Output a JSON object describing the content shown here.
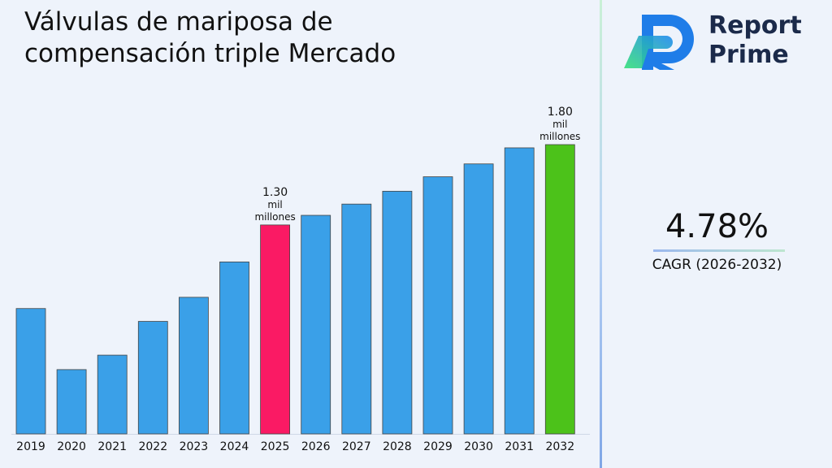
{
  "title": "Válvulas de mariposa de compensación triple Mercado",
  "brand": {
    "line1": "Report",
    "line2": "Prime",
    "logo_icon": "report-prime-logo-icon"
  },
  "cagr": {
    "value": "4.78%",
    "label": "CAGR (2026-2032)"
  },
  "colors": {
    "bar": "#3aa0e8",
    "highlight_2025": "#fa1a64",
    "highlight_2032": "#4cc21a"
  },
  "chart_data": {
    "type": "bar",
    "title": "Válvulas de mariposa de compensación triple Mercado",
    "categories": [
      "2019",
      "2020",
      "2021",
      "2022",
      "2023",
      "2024",
      "2025",
      "2026",
      "2027",
      "2028",
      "2029",
      "2030",
      "2031",
      "2032"
    ],
    "values": [
      0.78,
      0.4,
      0.49,
      0.7,
      0.85,
      1.07,
      1.3,
      1.36,
      1.43,
      1.51,
      1.6,
      1.68,
      1.78,
      1.8
    ],
    "highlights": [
      {
        "category": "2025",
        "color": "#fa1a64",
        "label": [
          "1.30",
          "mil",
          "millones"
        ]
      },
      {
        "category": "2032",
        "color": "#4cc21a",
        "label": [
          "1.80",
          "mil",
          "millones"
        ]
      }
    ],
    "xlabel": "",
    "ylabel": "",
    "ylim": [
      0,
      1.8
    ],
    "grid": false,
    "legend": "none"
  }
}
